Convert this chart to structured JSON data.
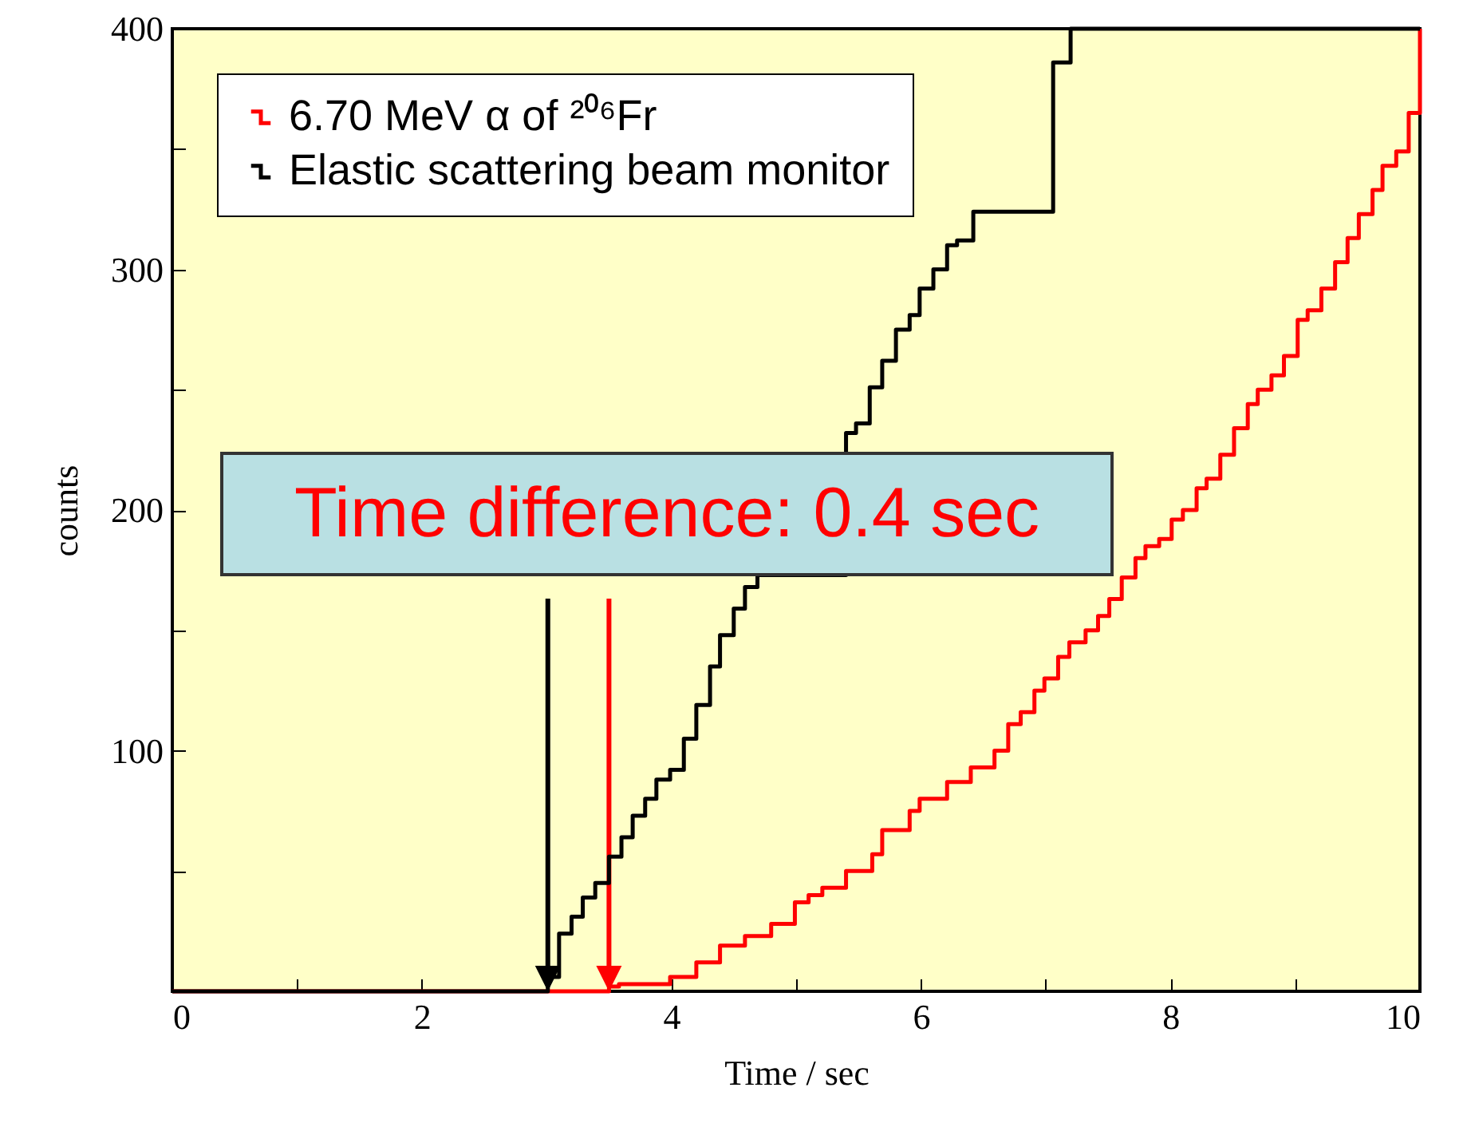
{
  "chart_data": {
    "type": "step",
    "xlabel": "Time / sec",
    "ylabel": "counts",
    "annotations": [
      "Time difference: 0.4 sec"
    ],
    "xlim": [
      0,
      10
    ],
    "xticks": [
      0,
      {
        "value": 1,
        "label": null
      },
      2,
      {
        "value": 3,
        "label": null
      },
      4,
      {
        "value": 5,
        "label": null
      },
      6,
      {
        "value": 7,
        "label": null
      },
      8,
      {
        "value": 9,
        "label": null
      },
      10
    ],
    "ylim": [
      0,
      400
    ],
    "yticks": [
      {
        "value": 0,
        "label": null
      },
      {
        "value": 50,
        "label": null
      },
      100,
      {
        "value": 150,
        "label": null
      },
      200,
      {
        "value": 250,
        "label": null
      },
      300,
      {
        "value": 350,
        "label": null
      },
      400
    ],
    "grid": false,
    "legend": "top left",
    "marker": "none",
    "line_style": "solid",
    "series": [
      {
        "name": "6.70 MeV α of ²⁰⁶Fr",
        "color": "#ff0000",
        "x": [
          0,
          3.5,
          3.58,
          3.99,
          4.2,
          4.39,
          4.59,
          4.8,
          4.99,
          5.1,
          5.21,
          5.4,
          5.61,
          5.69,
          5.91,
          5.99,
          6.21,
          6.4,
          6.59,
          6.7,
          6.8,
          6.91,
          6.99,
          7.1,
          7.19,
          7.32,
          7.42,
          7.51,
          7.61,
          7.72,
          7.8,
          7.91,
          8.01,
          8.1,
          8.21,
          8.29,
          8.4,
          8.51,
          8.62,
          8.7,
          8.81,
          8.91,
          9.02,
          9.1,
          9.21,
          9.32,
          9.42,
          9.51,
          9.62,
          9.7,
          9.81,
          9.91,
          10
        ],
        "values": [
          0,
          2,
          3,
          6,
          12,
          19,
          23,
          28,
          37,
          40,
          43,
          50,
          57,
          67,
          75,
          80,
          87,
          93,
          100,
          111,
          116,
          125,
          130,
          139,
          145,
          150,
          156,
          163,
          172,
          180,
          185,
          188,
          196,
          200,
          209,
          213,
          223,
          234,
          244,
          250,
          256,
          264,
          279,
          283,
          292,
          303,
          313,
          323,
          333,
          343,
          349,
          365,
          400
        ]
      },
      {
        "name": "Elastic scattering beam monitor",
        "color": "#000000",
        "x": [
          0,
          3.01,
          3.1,
          3.2,
          3.29,
          3.39,
          3.5,
          3.6,
          3.69,
          3.79,
          3.88,
          3.99,
          4.1,
          4.2,
          4.31,
          4.39,
          4.5,
          4.59,
          4.69,
          5.4,
          5.48,
          5.59,
          5.69,
          5.8,
          5.91,
          5.99,
          6.1,
          6.21,
          6.29,
          6.42,
          7.06,
          7.2,
          10
        ],
        "values": [
          0,
          6,
          24,
          31,
          39,
          45,
          56,
          64,
          73,
          80,
          88,
          92,
          105,
          119,
          135,
          148,
          159,
          168,
          173,
          232,
          236,
          251,
          262,
          275,
          281,
          292,
          300,
          310,
          312,
          324,
          386,
          400,
          400
        ]
      }
    ]
  }
}
